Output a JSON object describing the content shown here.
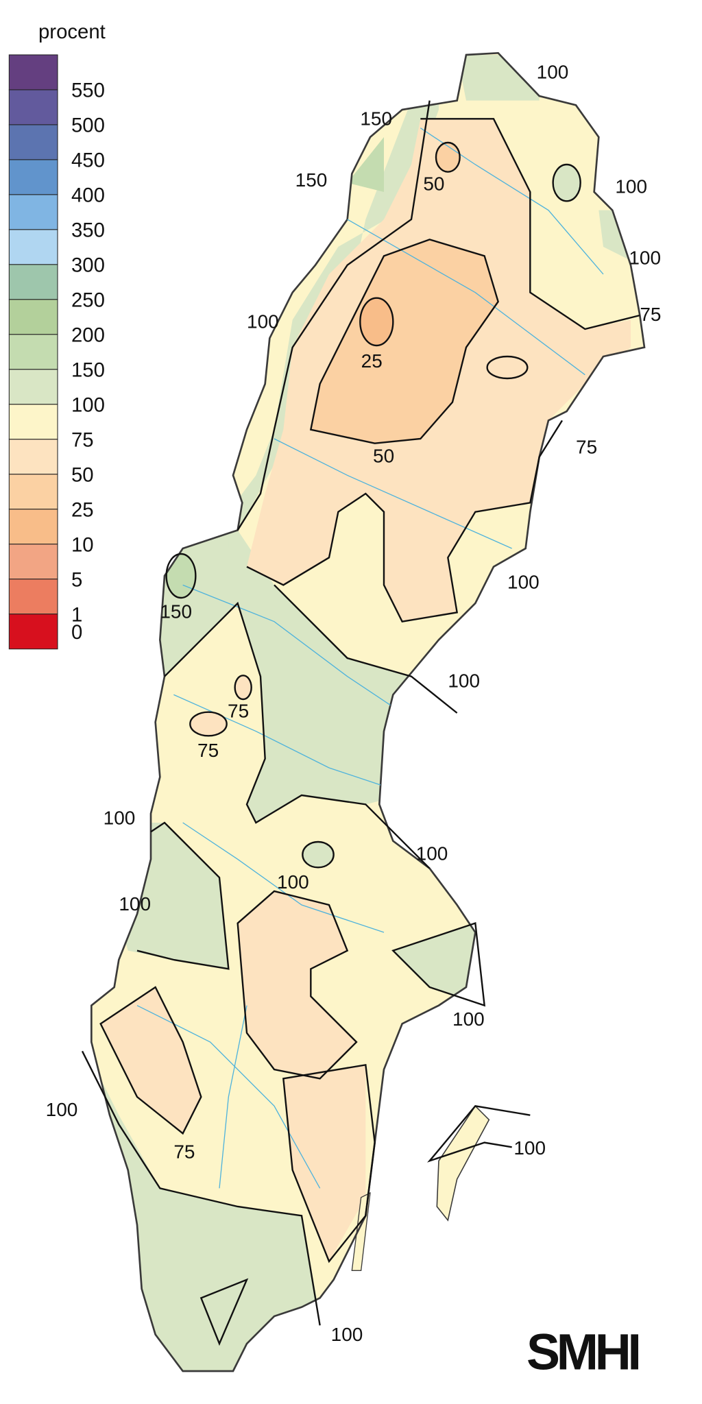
{
  "legend": {
    "title": "procent",
    "classes": [
      {
        "label": "550",
        "color": "#643f80"
      },
      {
        "label": "500",
        "color": "#625a9d"
      },
      {
        "label": "450",
        "color": "#5c74b0"
      },
      {
        "label": "400",
        "color": "#6194cc"
      },
      {
        "label": "350",
        "color": "#80b5e3"
      },
      {
        "label": "300",
        "color": "#b0d6f1"
      },
      {
        "label": "250",
        "color": "#9ec6ac"
      },
      {
        "label": "200",
        "color": "#b3d09b"
      },
      {
        "label": "150",
        "color": "#c4dcb0"
      },
      {
        "label": "100",
        "color": "#d9e6c5"
      },
      {
        "label": "75",
        "color": "#fdf5c9"
      },
      {
        "label": "50",
        "color": "#fde3c0"
      },
      {
        "label": "25",
        "color": "#fbd1a3"
      },
      {
        "label": "10",
        "color": "#f8bd89"
      },
      {
        "label": "5",
        "color": "#f2a584"
      },
      {
        "label": "1",
        "color": "#ec7d60"
      },
      {
        "label": "0",
        "color": "#d7101e"
      }
    ]
  },
  "contour_labels": [
    "100",
    "150",
    "150",
    "50",
    "100",
    "100",
    "75",
    "100",
    "25",
    "50",
    "75",
    "100",
    "150",
    "100",
    "75",
    "75",
    "100",
    "100",
    "100",
    "100",
    "100",
    "100",
    "75",
    "100",
    "100"
  ],
  "logo": "SMHI"
}
